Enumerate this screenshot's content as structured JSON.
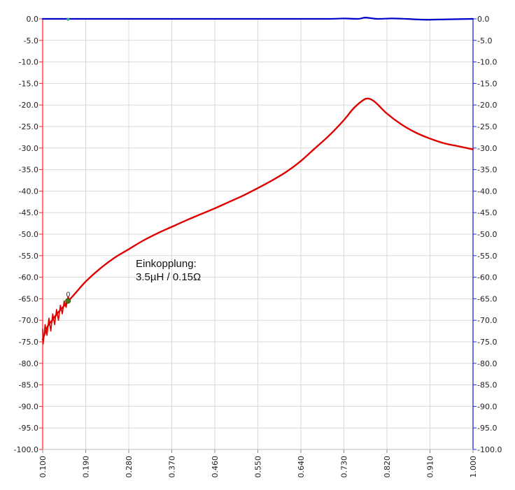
{
  "chart_data": {
    "type": "line",
    "x_ticks": [
      "0.100",
      "0.190",
      "0.280",
      "0.370",
      "0.460",
      "0.550",
      "0.640",
      "0.730",
      "0.820",
      "0.910",
      "1.000"
    ],
    "x_range": [
      0.1,
      1.0
    ],
    "y_left_ticks": [
      "0.0",
      "-5.0",
      "-10.0",
      "-15.0",
      "-20.0",
      "-25.0",
      "-30.0",
      "-35.0",
      "-40.0",
      "-45.0",
      "-50.0",
      "-55.0",
      "-60.0",
      "-65.0",
      "-70.0",
      "-75.0",
      "-80.0",
      "-85.0",
      "-90.0",
      "-95.0",
      "-100.0"
    ],
    "y_right_ticks": [
      "0.0",
      "-5.0",
      "-10.0",
      "-15.0",
      "-20.0",
      "-25.0",
      "-30.0",
      "-35.0",
      "-40.0",
      "-45.0",
      "-50.0",
      "-55.0",
      "-60.0",
      "-65.0",
      "-70.0",
      "-75.0",
      "-80.0",
      "-85.0",
      "-90.0",
      "-95.0",
      "-100.0"
    ],
    "y_range": [
      -100,
      0
    ],
    "grid": true,
    "annotation_lines": [
      "Einkopplung:",
      "3.5µH / 0.15Ω"
    ],
    "marker": {
      "label": "0",
      "x": 0.153,
      "y": -65.5
    },
    "series": [
      {
        "color": "#e00000",
        "x": [
          0.1,
          0.11,
          0.12,
          0.13,
          0.15,
          0.17,
          0.19,
          0.22,
          0.25,
          0.28,
          0.31,
          0.34,
          0.37,
          0.4,
          0.43,
          0.46,
          0.49,
          0.52,
          0.55,
          0.58,
          0.61,
          0.64,
          0.67,
          0.7,
          0.73,
          0.75,
          0.77,
          0.78,
          0.79,
          0.8,
          0.82,
          0.85,
          0.88,
          0.91,
          0.94,
          0.97,
          1.0
        ],
        "y": [
          -74.5,
          -71.5,
          -70.0,
          -68.5,
          -66.0,
          -63.5,
          -61.0,
          -58.0,
          -55.5,
          -53.5,
          -51.5,
          -49.8,
          -48.3,
          -46.8,
          -45.4,
          -44.0,
          -42.5,
          -41.0,
          -39.3,
          -37.5,
          -35.5,
          -33.0,
          -30.0,
          -27.0,
          -23.5,
          -20.8,
          -18.9,
          -18.5,
          -18.9,
          -19.8,
          -22.0,
          -24.5,
          -26.4,
          -27.8,
          -28.9,
          -29.6,
          -30.3
        ]
      },
      {
        "color": "#0000cc",
        "x": [
          0.1,
          0.2,
          0.3,
          0.4,
          0.5,
          0.6,
          0.7,
          0.73,
          0.76,
          0.775,
          0.8,
          0.83,
          0.86,
          0.9,
          0.95,
          1.0
        ],
        "y": [
          0.0,
          0.0,
          0.0,
          0.0,
          0.0,
          0.0,
          0.0,
          0.1,
          0.0,
          0.3,
          0.0,
          0.1,
          0.0,
          -0.2,
          -0.1,
          0.0
        ]
      }
    ]
  }
}
